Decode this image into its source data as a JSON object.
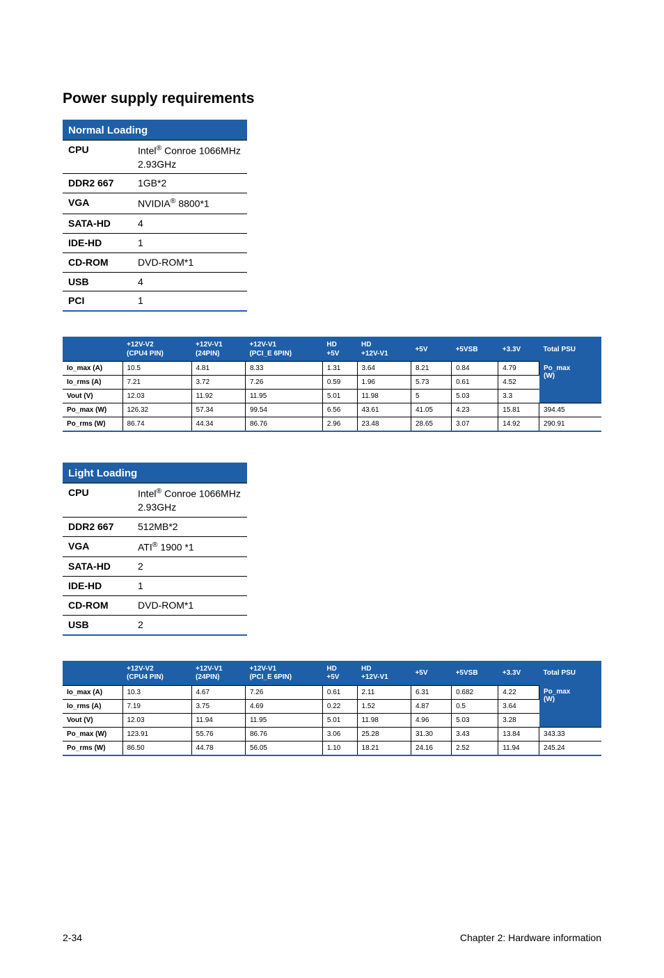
{
  "section_title": "Power supply requirements",
  "colors": {
    "brand": "#1f5fa8",
    "text": "#000000",
    "bg": "#ffffff"
  },
  "normal_spec": {
    "title": "Normal Loading",
    "rows": [
      {
        "label": "CPU",
        "value_html": "Intel<span class=\"sup\">®</span> Conroe 1066MHz 2.93GHz"
      },
      {
        "label": "DDR2 667",
        "value_html": "1GB*2"
      },
      {
        "label": "VGA",
        "value_html": "NVIDIA<span class=\"sup\">®</span> 8800*1"
      },
      {
        "label": "SATA-HD",
        "value_html": "4"
      },
      {
        "label": "IDE-HD",
        "value_html": "1"
      },
      {
        "label": "CD-ROM",
        "value_html": "DVD-ROM*1"
      },
      {
        "label": "USB",
        "value_html": "4"
      },
      {
        "label": "PCI",
        "value_html": "1"
      }
    ]
  },
  "light_spec": {
    "title": "Light Loading",
    "rows": [
      {
        "label": "CPU",
        "value_html": "Intel<span class=\"sup\">®</span> Conroe 1066MHz 2.93GHz"
      },
      {
        "label": "DDR2 667",
        "value_html": "512MB*2"
      },
      {
        "label": "VGA",
        "value_html": "ATI<span class=\"sup\">®</span> 1900 *1"
      },
      {
        "label": "SATA-HD",
        "value_html": "2"
      },
      {
        "label": "IDE-HD",
        "value_html": "1"
      },
      {
        "label": "CD-ROM",
        "value_html": "DVD-ROM*1"
      },
      {
        "label": "USB",
        "value_html": "2"
      }
    ]
  },
  "power_headers": [
    {
      "html": ""
    },
    {
      "html": "+12V-V2<br>(CPU4 PIN)"
    },
    {
      "html": "+12V-V1<br>(24PIN)"
    },
    {
      "html": "+12V-V1<br>(PCI_E 6PIN)"
    },
    {
      "html": "HD<br>+5V"
    },
    {
      "html": "HD<br>+12V-V1"
    },
    {
      "html": "+5V"
    },
    {
      "html": "+5VSB"
    },
    {
      "html": "+3.3V"
    },
    {
      "html": "Total PSU"
    }
  ],
  "normal_power": {
    "side_label_top": "Po_max (W)",
    "merged_rows": [
      {
        "label": "Io_max (A)",
        "cells": [
          "10.5",
          "4.81",
          "8.33",
          "1.31",
          "3.64",
          "8.21",
          "0.84",
          "4.79"
        ]
      },
      {
        "label": "Io_rms (A)",
        "cells": [
          "7.21",
          "3.72",
          "7.26",
          "0.59",
          "1.96",
          "5.73",
          "0.61",
          "4.52"
        ]
      },
      {
        "label": "Vout (V)",
        "cells": [
          "12.03",
          "11.92",
          "11.95",
          "5.01",
          "11.98",
          "5",
          "5.03",
          "3.3"
        ]
      }
    ],
    "tail_rows": [
      {
        "label": "Po_max (W)",
        "cells": [
          "126.32",
          "57.34",
          "99.54",
          "6.56",
          "43.61",
          "41.05",
          "4.23",
          "15.81",
          "394.45"
        ]
      },
      {
        "label": "Po_rms (W)",
        "cells": [
          "86.74",
          "44.34",
          "86.76",
          "2.96",
          "23.48",
          "28.65",
          "3.07",
          "14.92",
          "290.91"
        ]
      }
    ]
  },
  "light_power": {
    "side_label_top": "Po_max (W)",
    "merged_rows": [
      {
        "label": "Io_max (A)",
        "cells": [
          "10.3",
          "4.67",
          "7.26",
          "0.61",
          "2.11",
          "6.31",
          "0.682",
          "4.22"
        ]
      },
      {
        "label": "Io_rms (A)",
        "cells": [
          "7.19",
          "3.75",
          "4.69",
          "0.22",
          "1.52",
          "4.87",
          "0.5",
          "3.64"
        ]
      },
      {
        "label": "Vout (V)",
        "cells": [
          "12.03",
          "11.94",
          "11.95",
          "5.01",
          "11.98",
          "4.96",
          "5.03",
          "3.28"
        ]
      }
    ],
    "tail_rows": [
      {
        "label": "Po_max (W)",
        "cells": [
          "123.91",
          "55.76",
          "86.76",
          "3.06",
          "25.28",
          "31.30",
          "3.43",
          "13.84",
          "343.33"
        ]
      },
      {
        "label": "Po_rms (W)",
        "cells": [
          "86.50",
          "44.78",
          "56.05",
          "1.10",
          "18.21",
          "24.16",
          "2.52",
          "11.94",
          "245.24"
        ]
      }
    ]
  },
  "footer": {
    "left": "2-34",
    "right": "Chapter 2: Hardware information"
  }
}
